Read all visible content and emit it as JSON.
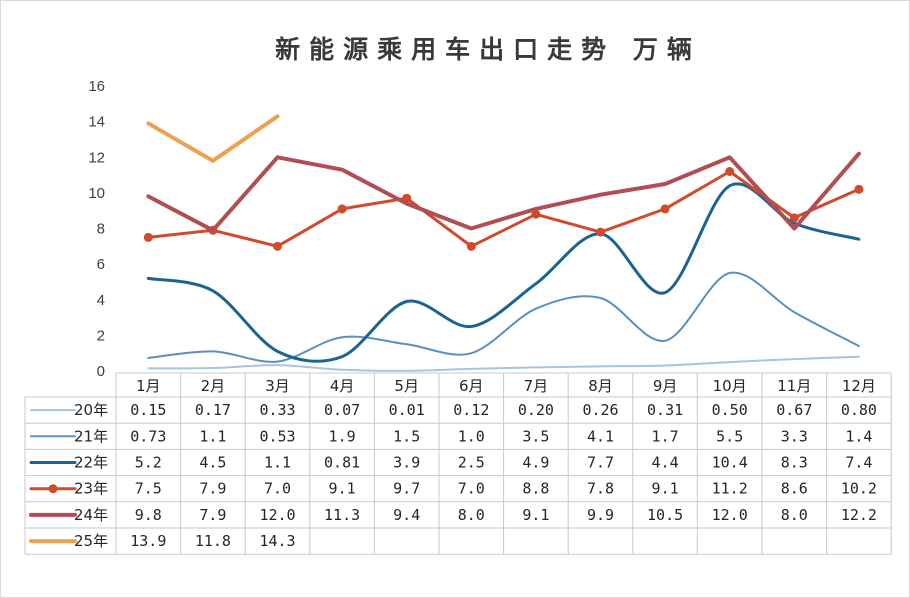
{
  "chart_data": {
    "type": "line",
    "title": "新能源乘用车出口走势  万辆",
    "categories": [
      "1月",
      "2月",
      "3月",
      "4月",
      "5月",
      "6月",
      "7月",
      "8月",
      "9月",
      "10月",
      "11月",
      "12月"
    ],
    "yticks": [
      "0",
      "2",
      "4",
      "6",
      "8",
      "10",
      "12",
      "14",
      "16"
    ],
    "ylim": [
      0,
      16
    ],
    "grid": false,
    "legend": "data-table",
    "series": [
      {
        "name": "20年",
        "color": "#a8c4e0",
        "smooth": true,
        "marker": false,
        "width": 2,
        "labels": [
          "0.15",
          "0.17",
          "0.33",
          "0.07",
          "0.01",
          "0.12",
          "0.20",
          "0.26",
          "0.31",
          "0.50",
          "0.67",
          "0.80"
        ],
        "values": [
          0.15,
          0.17,
          0.33,
          0.07,
          0.01,
          0.12,
          0.2,
          0.26,
          0.31,
          0.5,
          0.67,
          0.8
        ]
      },
      {
        "name": "21年",
        "color": "#5b8fbe",
        "smooth": true,
        "marker": false,
        "width": 2,
        "labels": [
          "0.73",
          "1.1",
          "0.53",
          "1.9",
          "1.5",
          "1.0",
          "3.5",
          "4.1",
          "1.7",
          "5.5",
          "3.3",
          "1.4"
        ],
        "values": [
          0.73,
          1.1,
          0.53,
          1.9,
          1.5,
          1.0,
          3.5,
          4.1,
          1.7,
          5.5,
          3.3,
          1.4
        ]
      },
      {
        "name": "22年",
        "color": "#1a6494",
        "smooth": true,
        "marker": false,
        "width": 3,
        "labels": [
          "5.2",
          "4.5",
          "1.1",
          "0.81",
          "3.9",
          "2.5",
          "4.9",
          "7.7",
          "4.4",
          "10.4",
          "8.3",
          "7.4"
        ],
        "values": [
          5.2,
          4.5,
          1.1,
          0.81,
          3.9,
          2.5,
          4.9,
          7.7,
          4.4,
          10.4,
          8.3,
          7.4
        ]
      },
      {
        "name": "23年",
        "color": "#d14a2b",
        "smooth": false,
        "marker": true,
        "width": 3,
        "labels": [
          "7.5",
          "7.9",
          "7.0",
          "9.1",
          "9.7",
          "7.0",
          "8.8",
          "7.8",
          "9.1",
          "11.2",
          "8.6",
          "10.2"
        ],
        "values": [
          7.5,
          7.9,
          7.0,
          9.1,
          9.7,
          7.0,
          8.8,
          7.8,
          9.1,
          11.2,
          8.6,
          10.2
        ]
      },
      {
        "name": "24年",
        "color": "#b04e52",
        "smooth": false,
        "marker": false,
        "width": 4,
        "labels": [
          "9.8",
          "7.9",
          "12.0",
          "11.3",
          "9.4",
          "8.0",
          "9.1",
          "9.9",
          "10.5",
          "12.0",
          "8.0",
          "12.2"
        ],
        "values": [
          9.8,
          7.9,
          12.0,
          11.3,
          9.4,
          8.0,
          9.1,
          9.9,
          10.5,
          12.0,
          8.0,
          12.2
        ]
      },
      {
        "name": "25年",
        "color": "#eba250",
        "smooth": false,
        "marker": false,
        "width": 4,
        "labels": [
          "13.9",
          "11.8",
          "14.3",
          "",
          "",
          "",
          "",
          "",
          "",
          "",
          "",
          ""
        ],
        "values": [
          13.9,
          11.8,
          14.3,
          null,
          null,
          null,
          null,
          null,
          null,
          null,
          null,
          null
        ]
      }
    ]
  }
}
